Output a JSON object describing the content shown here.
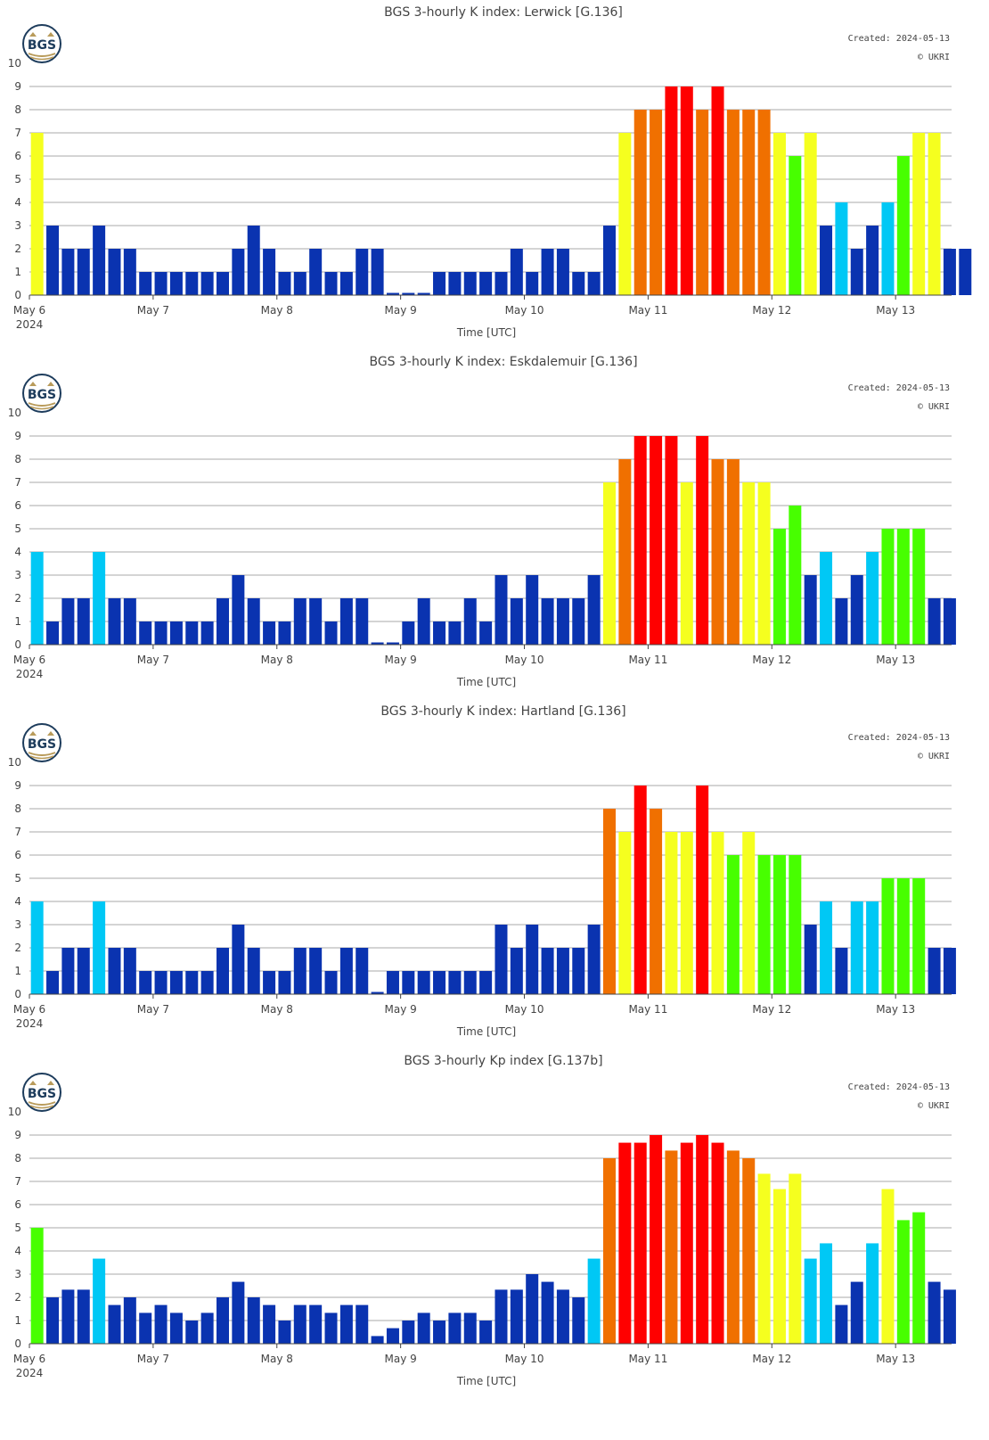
{
  "created_label": "Created: 2024-05-13",
  "copyright_label": "© UKRI",
  "logo_text": "BGS",
  "colors": {
    "k0_3": "#0a33b0",
    "k4": "#00c8f5",
    "k5_6": "#47ff00",
    "k7": "#f5ff1f",
    "k8": "#f07000",
    "k9": "#ff0000",
    "grid": "#a8a8a8",
    "text": "#444444"
  },
  "chart_data": [
    {
      "type": "bar",
      "title": "BGS 3-hourly K index: Lerwick [G.136]",
      "xlabel": "Time [UTC]",
      "ylabel": "",
      "ylim": [
        0,
        10
      ],
      "y_ticks": [
        0,
        1,
        2,
        3,
        4,
        5,
        6,
        7,
        8,
        9,
        10
      ],
      "x_ticks": [
        "May 6",
        "May 7",
        "May 8",
        "May 9",
        "May 10",
        "May 11",
        "May 12",
        "May 13"
      ],
      "x_year": "2024",
      "bars_per_day": 8,
      "grid": "horizontal",
      "values": [
        7,
        3,
        2,
        2,
        3,
        2,
        2,
        1,
        1,
        1,
        1,
        1,
        1,
        2,
        3,
        2,
        1,
        1,
        2,
        1,
        1,
        2,
        2,
        0,
        0,
        0,
        1,
        1,
        1,
        1,
        1,
        2,
        1,
        2,
        2,
        1,
        1,
        3,
        7,
        8,
        8,
        9,
        9,
        8,
        9,
        8,
        8,
        8,
        7,
        6,
        7,
        3,
        4,
        2,
        3,
        4,
        6,
        7,
        7,
        2,
        2
      ]
    },
    {
      "type": "bar",
      "title": "BGS 3-hourly K index: Eskdalemuir [G.136]",
      "xlabel": "Time [UTC]",
      "ylabel": "",
      "ylim": [
        0,
        10
      ],
      "y_ticks": [
        0,
        1,
        2,
        3,
        4,
        5,
        6,
        7,
        8,
        9,
        10
      ],
      "x_ticks": [
        "May 6",
        "May 7",
        "May 8",
        "May 9",
        "May 10",
        "May 11",
        "May 12",
        "May 13"
      ],
      "x_year": "2024",
      "bars_per_day": 8,
      "grid": "horizontal",
      "values": [
        4,
        1,
        2,
        2,
        4,
        2,
        2,
        1,
        1,
        1,
        1,
        1,
        2,
        3,
        2,
        1,
        1,
        2,
        2,
        1,
        2,
        2,
        0,
        0,
        1,
        2,
        1,
        1,
        2,
        1,
        3,
        2,
        3,
        2,
        2,
        2,
        3,
        7,
        8,
        9,
        9,
        9,
        7,
        9,
        8,
        8,
        7,
        7,
        5,
        6,
        3,
        4,
        2,
        3,
        4,
        5,
        5,
        5,
        2,
        2
      ]
    },
    {
      "type": "bar",
      "title": "BGS 3-hourly K index: Hartland [G.136]",
      "xlabel": "Time [UTC]",
      "ylabel": "",
      "ylim": [
        0,
        10
      ],
      "y_ticks": [
        0,
        1,
        2,
        3,
        4,
        5,
        6,
        7,
        8,
        9,
        10
      ],
      "x_ticks": [
        "May 6",
        "May 7",
        "May 8",
        "May 9",
        "May 10",
        "May 11",
        "May 12",
        "May 13"
      ],
      "x_year": "2024",
      "bars_per_day": 8,
      "grid": "horizontal",
      "values": [
        4,
        1,
        2,
        2,
        4,
        2,
        2,
        1,
        1,
        1,
        1,
        1,
        2,
        3,
        2,
        1,
        1,
        2,
        2,
        1,
        2,
        2,
        0,
        1,
        1,
        1,
        1,
        1,
        1,
        1,
        3,
        2,
        3,
        2,
        2,
        2,
        3,
        8,
        7,
        9,
        8,
        7,
        7,
        9,
        7,
        6,
        7,
        6,
        6,
        6,
        3,
        4,
        2,
        4,
        4,
        5,
        5,
        5,
        2,
        2
      ]
    },
    {
      "type": "bar",
      "title": "BGS 3-hourly Kp index [G.137b]",
      "xlabel": "Time [UTC]",
      "ylabel": "",
      "ylim": [
        0,
        10
      ],
      "y_ticks": [
        0,
        1,
        2,
        3,
        4,
        5,
        6,
        7,
        8,
        9,
        10
      ],
      "x_ticks": [
        "May 6",
        "May 7",
        "May 8",
        "May 9",
        "May 10",
        "May 11",
        "May 12",
        "May 13"
      ],
      "x_year": "2024",
      "bars_per_day": 8,
      "grid": "horizontal",
      "values": [
        5,
        2,
        2.33,
        2.33,
        3.67,
        1.67,
        2,
        1.33,
        1.67,
        1.33,
        1,
        1.33,
        2,
        2.67,
        2,
        1.67,
        1,
        1.67,
        1.67,
        1.33,
        1.67,
        1.67,
        0.33,
        0.67,
        1,
        1.33,
        1,
        1.33,
        1.33,
        1,
        2.33,
        2.33,
        3,
        2.67,
        2.33,
        2,
        3.67,
        8,
        8.67,
        8.67,
        9,
        8.33,
        8.67,
        9,
        8.67,
        8.33,
        8,
        7.33,
        6.67,
        7.33,
        3.67,
        4.33,
        1.67,
        2.67,
        4.33,
        6.67,
        5.33,
        5.67,
        2.67,
        2.33
      ]
    }
  ]
}
